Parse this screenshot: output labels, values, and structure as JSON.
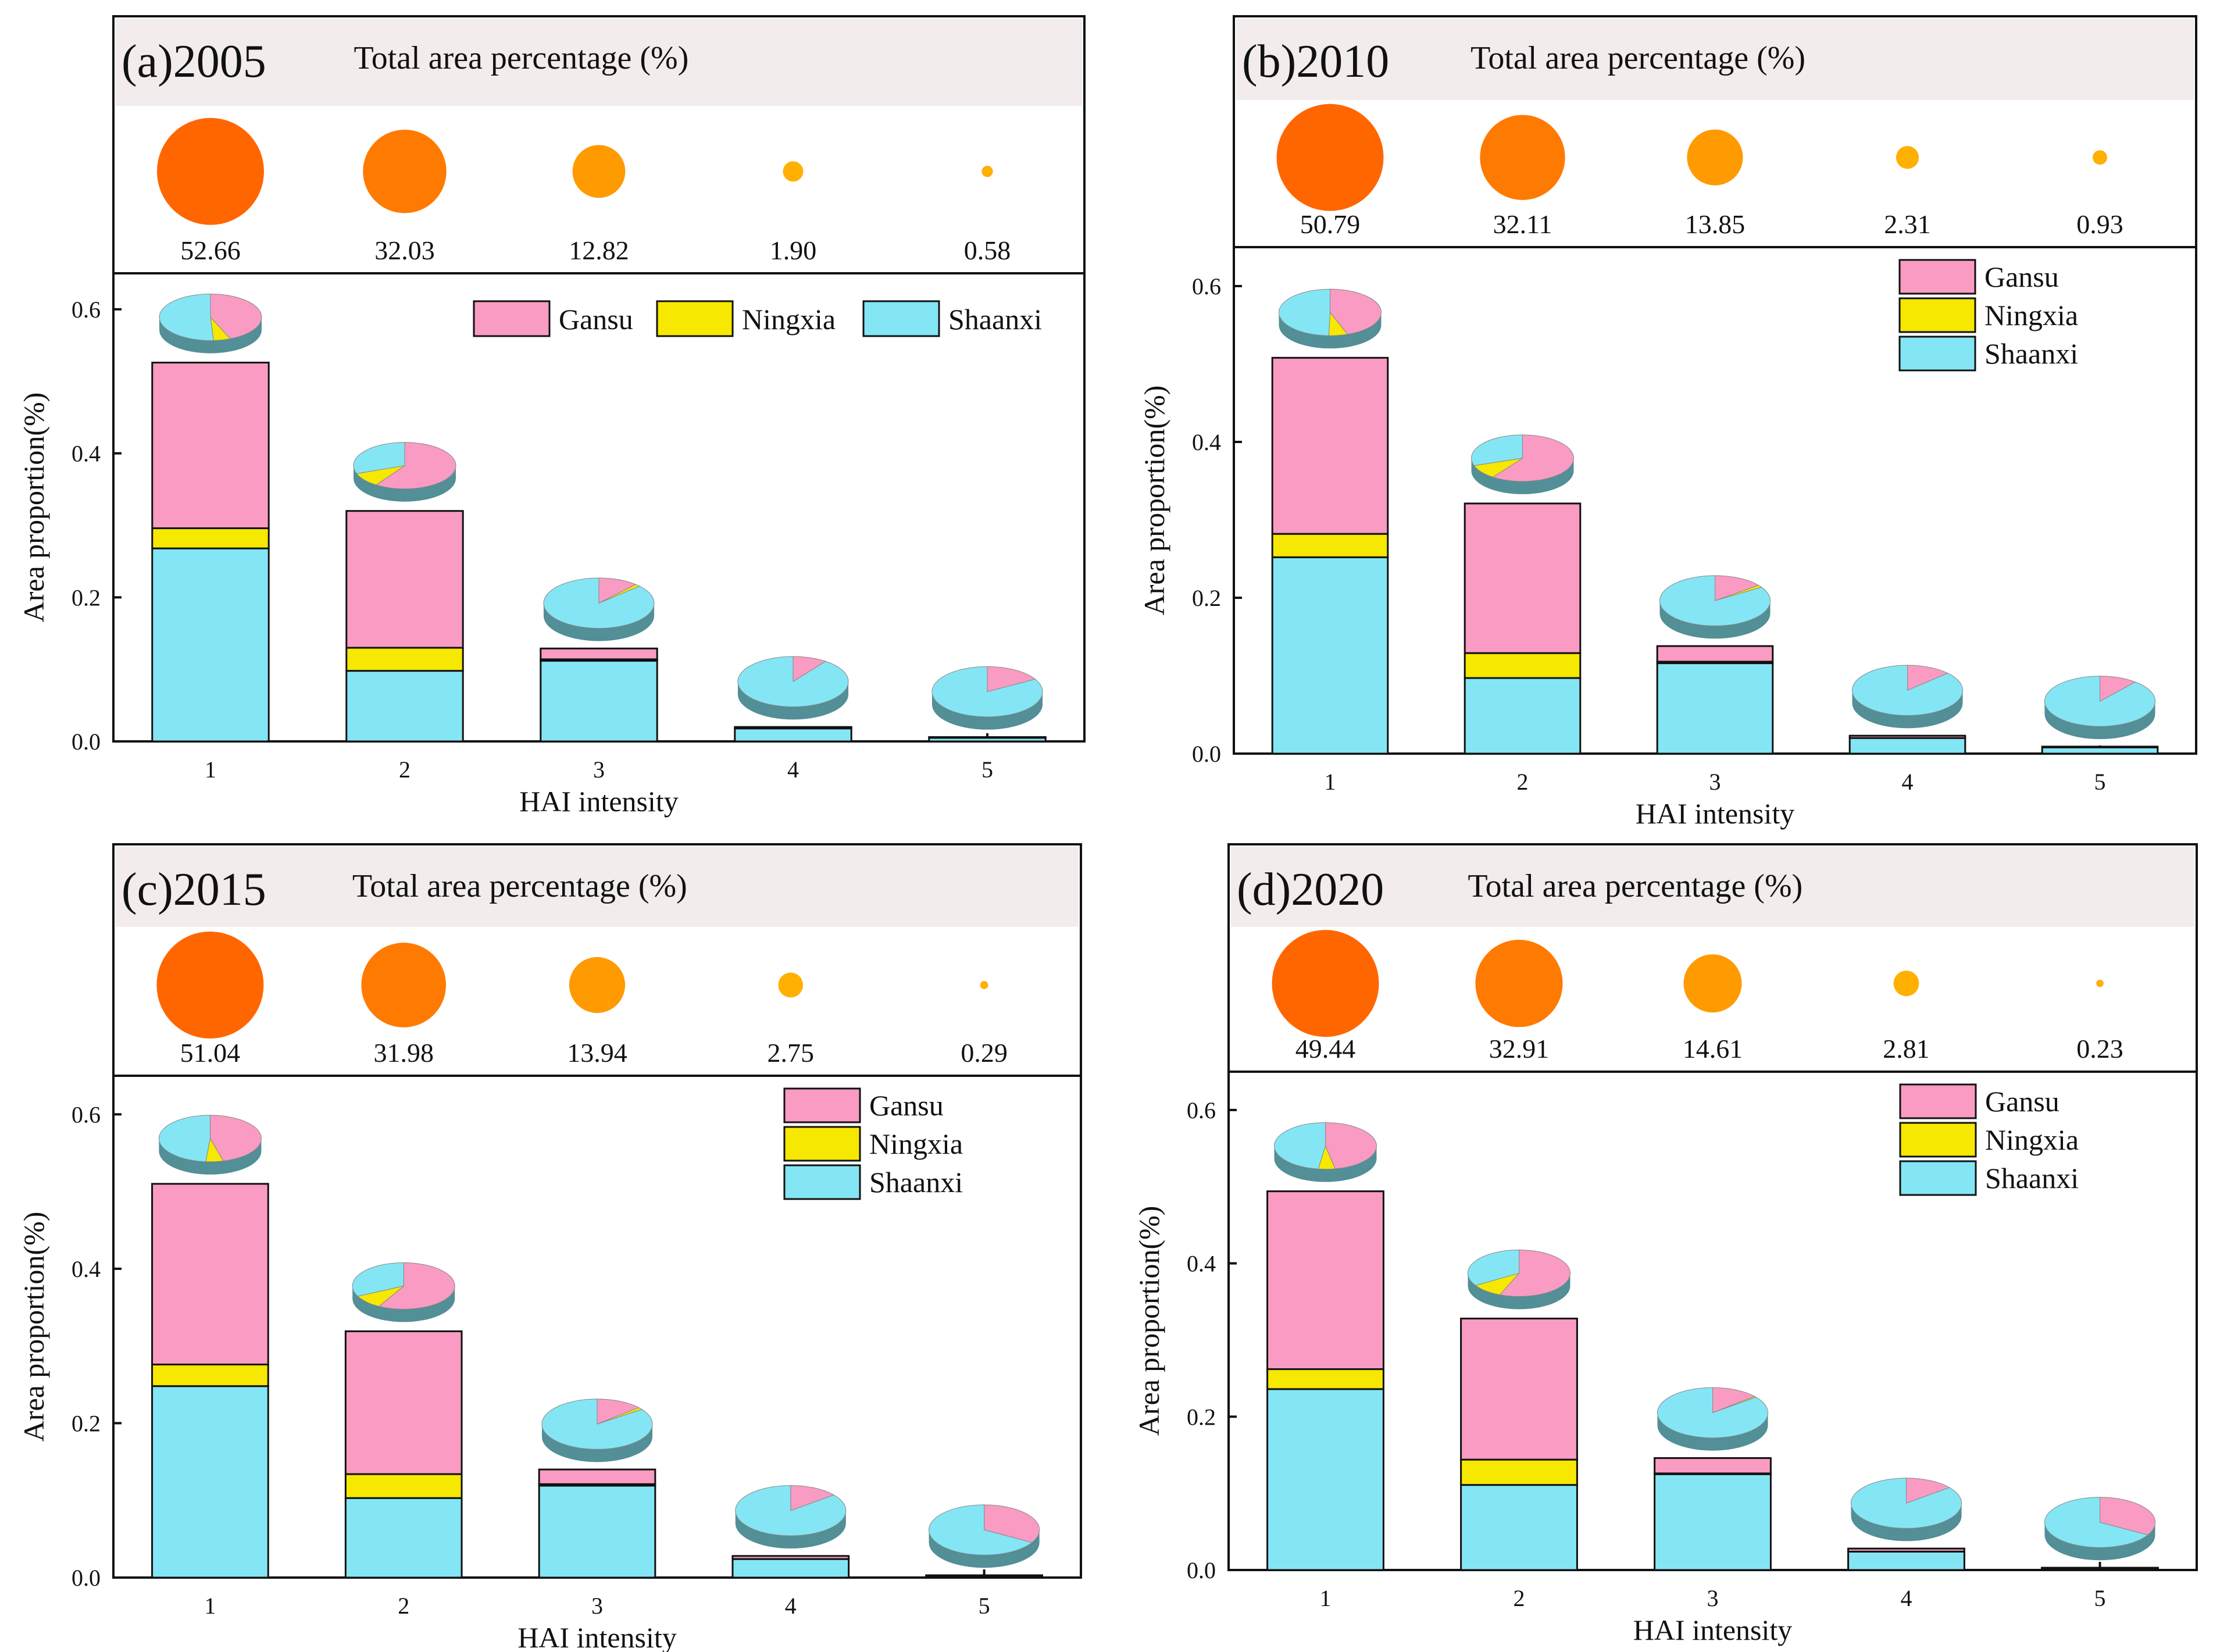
{
  "colors": {
    "gansu": "#F99BC3",
    "ningxia": "#F6E800",
    "shaanxi": "#84E6F4",
    "bubble_large": "#FF6600",
    "bubble_mid": "#FF7A00",
    "bubble_small": "#FF9A00",
    "bubble_tiny": "#FFB000",
    "header_bg": "#F3ECEC"
  },
  "chart_data": [
    {
      "type": "bar",
      "stacked": true,
      "panel_label": "(a)2005",
      "title": "Total area percentage (%)",
      "bubble_values": [
        52.66,
        32.03,
        12.82,
        1.9,
        0.58
      ],
      "bubble_labels": [
        "52.66",
        "32.03",
        "12.82",
        "1.90",
        "0.58"
      ],
      "categories": [
        "1",
        "2",
        "3",
        "4",
        "5"
      ],
      "xlabel": "HAI intensity",
      "ylabel": "Area proportion(%)",
      "ylim": [
        0,
        0.65
      ],
      "yticks": [
        "0.0",
        "0.2",
        "0.4",
        "0.6"
      ],
      "legend_position": "top-right-horizontal",
      "series": [
        {
          "name": "Gansu",
          "values": [
            0.23,
            0.19,
            0.015,
            0.002,
            0.001
          ]
        },
        {
          "name": "Ningxia",
          "values": [
            0.028,
            0.032,
            0.002,
            0.0,
            0.0
          ]
        },
        {
          "name": "Shaanxi",
          "values": [
            0.268,
            0.098,
            0.112,
            0.018,
            0.005
          ]
        }
      ]
    },
    {
      "type": "bar",
      "stacked": true,
      "panel_label": "(b)2010",
      "title": "Total area percentage (%)",
      "bubble_values": [
        50.79,
        32.11,
        13.85,
        2.31,
        0.93
      ],
      "bubble_labels": [
        "50.79",
        "32.11",
        "13.85",
        "2.31",
        "0.93"
      ],
      "categories": [
        "1",
        "2",
        "3",
        "4",
        "5"
      ],
      "xlabel": "HAI intensity",
      "ylabel": "Area proportion(%)",
      "ylim": [
        0,
        0.65
      ],
      "yticks": [
        "0.0",
        "0.2",
        "0.4",
        "0.6"
      ],
      "legend_position": "top-right",
      "series": [
        {
          "name": "Gansu",
          "values": [
            0.226,
            0.192,
            0.02,
            0.003,
            0.001
          ]
        },
        {
          "name": "Ningxia",
          "values": [
            0.03,
            0.032,
            0.002,
            0.0,
            0.0
          ]
        },
        {
          "name": "Shaanxi",
          "values": [
            0.252,
            0.097,
            0.116,
            0.02,
            0.008
          ]
        }
      ]
    },
    {
      "type": "bar",
      "stacked": true,
      "panel_label": "(c)2015",
      "title": "Total area percentage (%)",
      "bubble_values": [
        51.04,
        31.98,
        13.94,
        2.75,
        0.29
      ],
      "bubble_labels": [
        "51.04",
        "31.98",
        "13.94",
        "2.75",
        "0.29"
      ],
      "categories": [
        "1",
        "2",
        "3",
        "4",
        "5"
      ],
      "xlabel": "HAI intensity",
      "ylabel": "Area proportion(%)",
      "ylim": [
        0,
        0.65
      ],
      "yticks": [
        "0.0",
        "0.2",
        "0.4",
        "0.6"
      ],
      "legend_position": "top-right",
      "series": [
        {
          "name": "Gansu",
          "values": [
            0.234,
            0.185,
            0.019,
            0.004,
            0.001
          ]
        },
        {
          "name": "Ningxia",
          "values": [
            0.028,
            0.031,
            0.002,
            0.0,
            0.0
          ]
        },
        {
          "name": "Shaanxi",
          "values": [
            0.248,
            0.103,
            0.119,
            0.024,
            0.002
          ]
        }
      ]
    },
    {
      "type": "bar",
      "stacked": true,
      "panel_label": "(d)2020",
      "title": "Total area percentage (%)",
      "bubble_values": [
        49.44,
        32.91,
        14.61,
        2.81,
        0.23
      ],
      "bubble_labels": [
        "49.44",
        "32.91",
        "14.61",
        "2.81",
        "0.23"
      ],
      "categories": [
        "1",
        "2",
        "3",
        "4",
        "5"
      ],
      "xlabel": "HAI intensity",
      "ylabel": "Area proportion(%)",
      "ylim": [
        0,
        0.65
      ],
      "yticks": [
        "0.0",
        "0.2",
        "0.4",
        "0.6"
      ],
      "legend_position": "top-right",
      "series": [
        {
          "name": "Gansu",
          "values": [
            0.232,
            0.184,
            0.02,
            0.004,
            0.001
          ]
        },
        {
          "name": "Ningxia",
          "values": [
            0.026,
            0.033,
            0.001,
            0.0,
            0.0
          ]
        },
        {
          "name": "Shaanxi",
          "values": [
            0.236,
            0.111,
            0.125,
            0.024,
            0.002
          ]
        }
      ]
    }
  ]
}
